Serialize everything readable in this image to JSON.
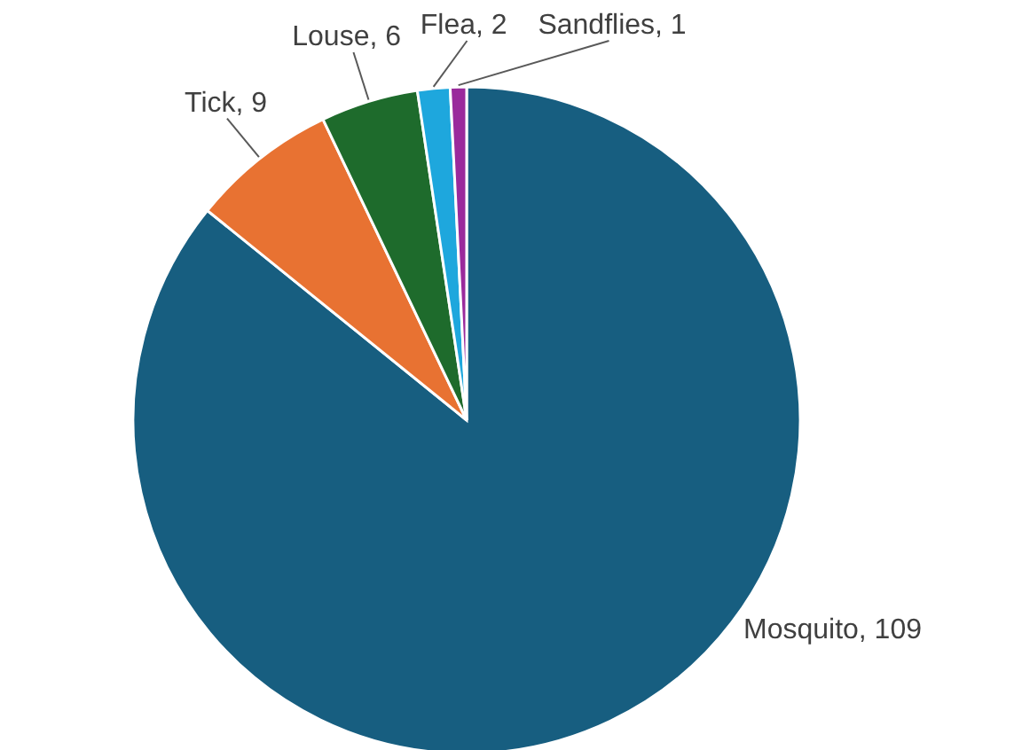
{
  "chart_data": {
    "type": "pie",
    "categories": [
      "Mosquito",
      "Tick",
      "Louse",
      "Flea",
      "Sandflies"
    ],
    "values": [
      109,
      9,
      6,
      2,
      1
    ],
    "colors": [
      "#175e80",
      "#e87232",
      "#1e6b2c",
      "#1ea7dd",
      "#9a2a9c"
    ],
    "value_labels": [
      ", 109",
      ", 9",
      ", 6",
      ", 2",
      ", 1"
    ]
  }
}
